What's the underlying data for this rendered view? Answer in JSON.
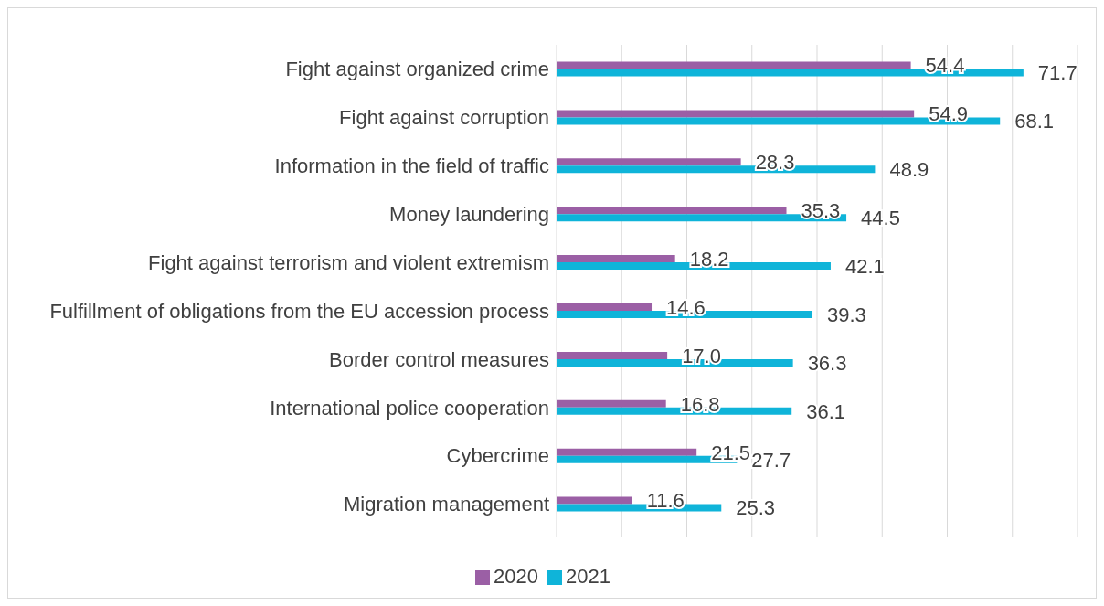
{
  "chart_data": {
    "type": "bar",
    "orientation": "horizontal",
    "categories": [
      "Fight against organized crime",
      "Fight against corruption",
      "Information in the field of traffic",
      "Money laundering",
      "Fight against terrorism and violent extremism",
      "Fulfillment of obligations from the EU accession process",
      "Border control measures",
      "International police cooperation",
      "Cybercrime",
      "Migration management"
    ],
    "series": [
      {
        "name": "2020",
        "color": "#9b5fa5",
        "values": [
          54.4,
          54.9,
          28.3,
          35.3,
          18.2,
          14.6,
          17.0,
          16.8,
          21.5,
          11.6
        ],
        "value_labels": [
          "54.4",
          "54.9",
          "28.3",
          "35.3",
          "18.2",
          "14.6",
          "17.0",
          "16.8",
          "21.5",
          "11.6"
        ]
      },
      {
        "name": "2021",
        "color": "#0fb4d9",
        "values": [
          71.7,
          68.1,
          48.9,
          44.5,
          42.1,
          39.3,
          36.3,
          36.1,
          27.7,
          25.3
        ],
        "value_labels": [
          "71.7",
          "68.1",
          "48.9",
          "44.5",
          "42.1",
          "39.3",
          "36.3",
          "36.1",
          "27.7",
          "25.3"
        ]
      }
    ],
    "xlim": [
      0,
      80
    ],
    "xticks": [
      {
        "value": 0,
        "label": null
      },
      {
        "value": 10,
        "label": null
      },
      {
        "value": 20,
        "label": null
      },
      {
        "value": 30,
        "label": null
      },
      {
        "value": 40,
        "label": null
      },
      {
        "value": 50,
        "label": null
      },
      {
        "value": 60,
        "label": null
      },
      {
        "value": 70,
        "label": null
      },
      {
        "value": 80,
        "label": null
      }
    ],
    "tick_labels": "y",
    "grid": "x",
    "legend": "bottom"
  }
}
